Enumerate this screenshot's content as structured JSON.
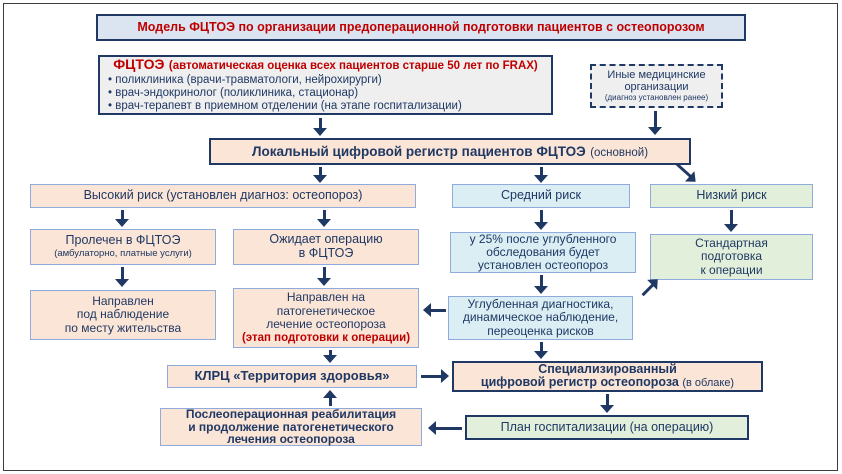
{
  "colors": {
    "navy": "#1f3864",
    "red": "#c00000",
    "peach": "#fbe5d6",
    "lightblue": "#daeef3",
    "lightgreen": "#e2efda",
    "lightgray": "#efefef",
    "titlebg": "#dbe5f1",
    "borderblue": "#8faadc"
  },
  "title": "Модель ФЦТОЭ по организации предоперационной подготовки пациентов с остеопорозом",
  "fctoe": {
    "heading": "ФЦТОЭ",
    "note": "(автоматическая оценка всех пациентов старше 50 лет по FRAX)",
    "bullets": [
      "поликлиника (врачи-травматологи, нейрохирурги)",
      "врач-эндокринолог (поликлиника, стационар)",
      "врач-терапевт в приемном отделении (на этапе госпитализации)"
    ]
  },
  "other_orgs": {
    "lines": [
      "Иные медицинские",
      "организации"
    ],
    "note": "(диагноз установлен ранее)"
  },
  "registry": {
    "text": "Локальный цифровой регистр пациентов ФЦТОЭ",
    "note": "(основной)"
  },
  "risks": {
    "high": "Высокий риск (установлен диагноз: остеопороз)",
    "medium": "Средний риск",
    "low": "Низкий риск"
  },
  "treated": {
    "text": "Пролечен в ФЦТОЭ",
    "note": "(амбулаторно, платные услуги)"
  },
  "awaiting": {
    "lines": [
      "Ожидает операцию",
      "в ФЦТОЭ"
    ]
  },
  "pct25": {
    "lines": [
      "у 25% после углубленного",
      "обследования будет",
      "установлен остеопороз"
    ]
  },
  "standard_prep": {
    "lines": [
      "Стандартная",
      "подготовка",
      "к операции"
    ]
  },
  "observation": {
    "lines": [
      "Направлен",
      "под наблюдение",
      "по месту жительства"
    ]
  },
  "treatment": {
    "lines": [
      "Направлен на",
      "патогенетическое",
      "лечение остеопороза"
    ],
    "note": "(этап подготовки к операции)"
  },
  "diagnostics": {
    "lines": [
      "Углубленная диагностика,",
      "динамическое наблюдение,",
      "переоценка рисков"
    ]
  },
  "klrc": {
    "text": "КЛРЦ «Территория здоровья»"
  },
  "spec_registry": {
    "line1": "Специализированный",
    "line2": "цифровой регистр остеопороза",
    "note": "(в облаке)"
  },
  "rehab": {
    "lines": [
      "Послеоперационная реабилитация",
      "и продолжение патогенетического",
      "лечения остеопороза"
    ]
  },
  "hosp_plan": {
    "text": "План госпитализации (на операцию)"
  }
}
